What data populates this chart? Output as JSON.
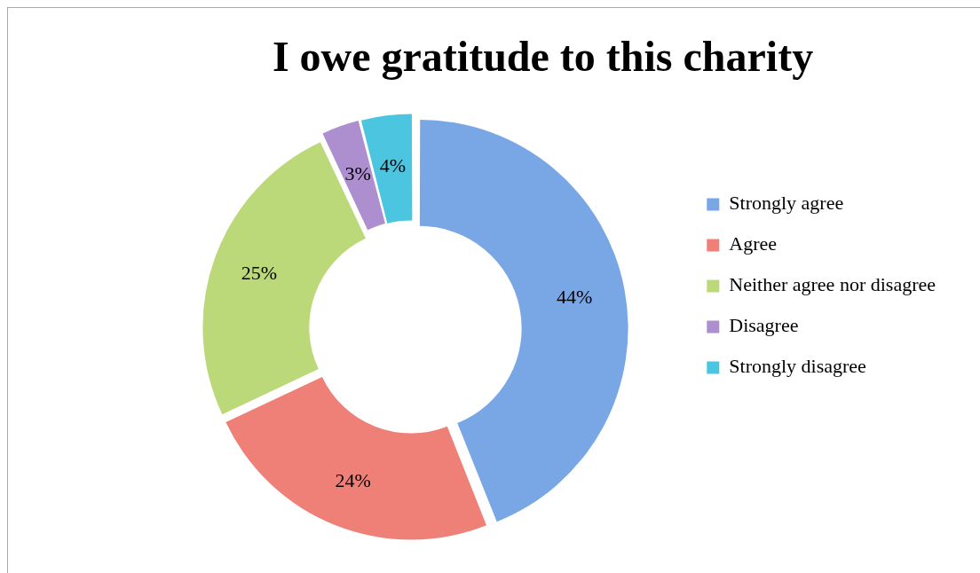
{
  "chart_data": {
    "type": "donut",
    "title": "I owe gratitude to this charity",
    "categories": [
      "Strongly agree",
      "Agree",
      "Neither agree nor disagree",
      "Disagree",
      "Strongly disagree"
    ],
    "values": [
      44,
      24,
      25,
      3,
      4
    ],
    "value_labels": [
      "44%",
      "24%",
      "25%",
      "3%",
      "4%"
    ],
    "colors": [
      "#79a7e6",
      "#ef8078",
      "#bcd97a",
      "#ad8fd0",
      "#4cc6e0"
    ],
    "legend": "right"
  }
}
